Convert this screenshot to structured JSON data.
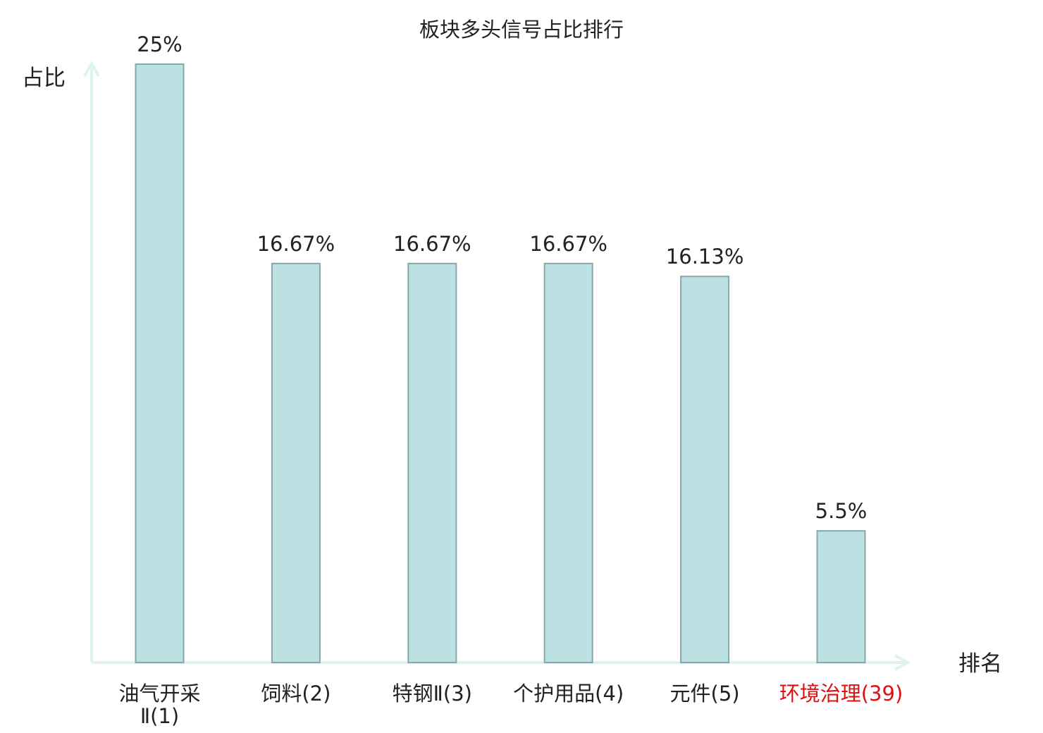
{
  "chart_data": {
    "type": "bar",
    "title": "板块多头信号占比排行",
    "xlabel": "排名",
    "ylabel": "占比",
    "categories": [
      {
        "lines": [
          "油气开采",
          "Ⅱ(1)"
        ],
        "highlight": false
      },
      {
        "lines": [
          "饲料(2)"
        ],
        "highlight": false
      },
      {
        "lines": [
          "特钢Ⅱ(3)"
        ],
        "highlight": false
      },
      {
        "lines": [
          "个护用品(4)"
        ],
        "highlight": false
      },
      {
        "lines": [
          "元件(5)"
        ],
        "highlight": false
      },
      {
        "lines": [
          "环境治理(39)"
        ],
        "highlight": true
      }
    ],
    "values": [
      25,
      16.67,
      16.67,
      16.67,
      16.13,
      5.5
    ],
    "value_labels": [
      "25%",
      "16.67%",
      "16.67%",
      "16.67%",
      "16.13%",
      "5.5%"
    ],
    "ylim": [
      0,
      25
    ],
    "grid": false,
    "colors": {
      "bar_fill": "#bde0e3",
      "bar_stroke": "#86a7ab",
      "axis": "#dff2ef",
      "text": "#222222",
      "highlight": "#e01010"
    }
  }
}
